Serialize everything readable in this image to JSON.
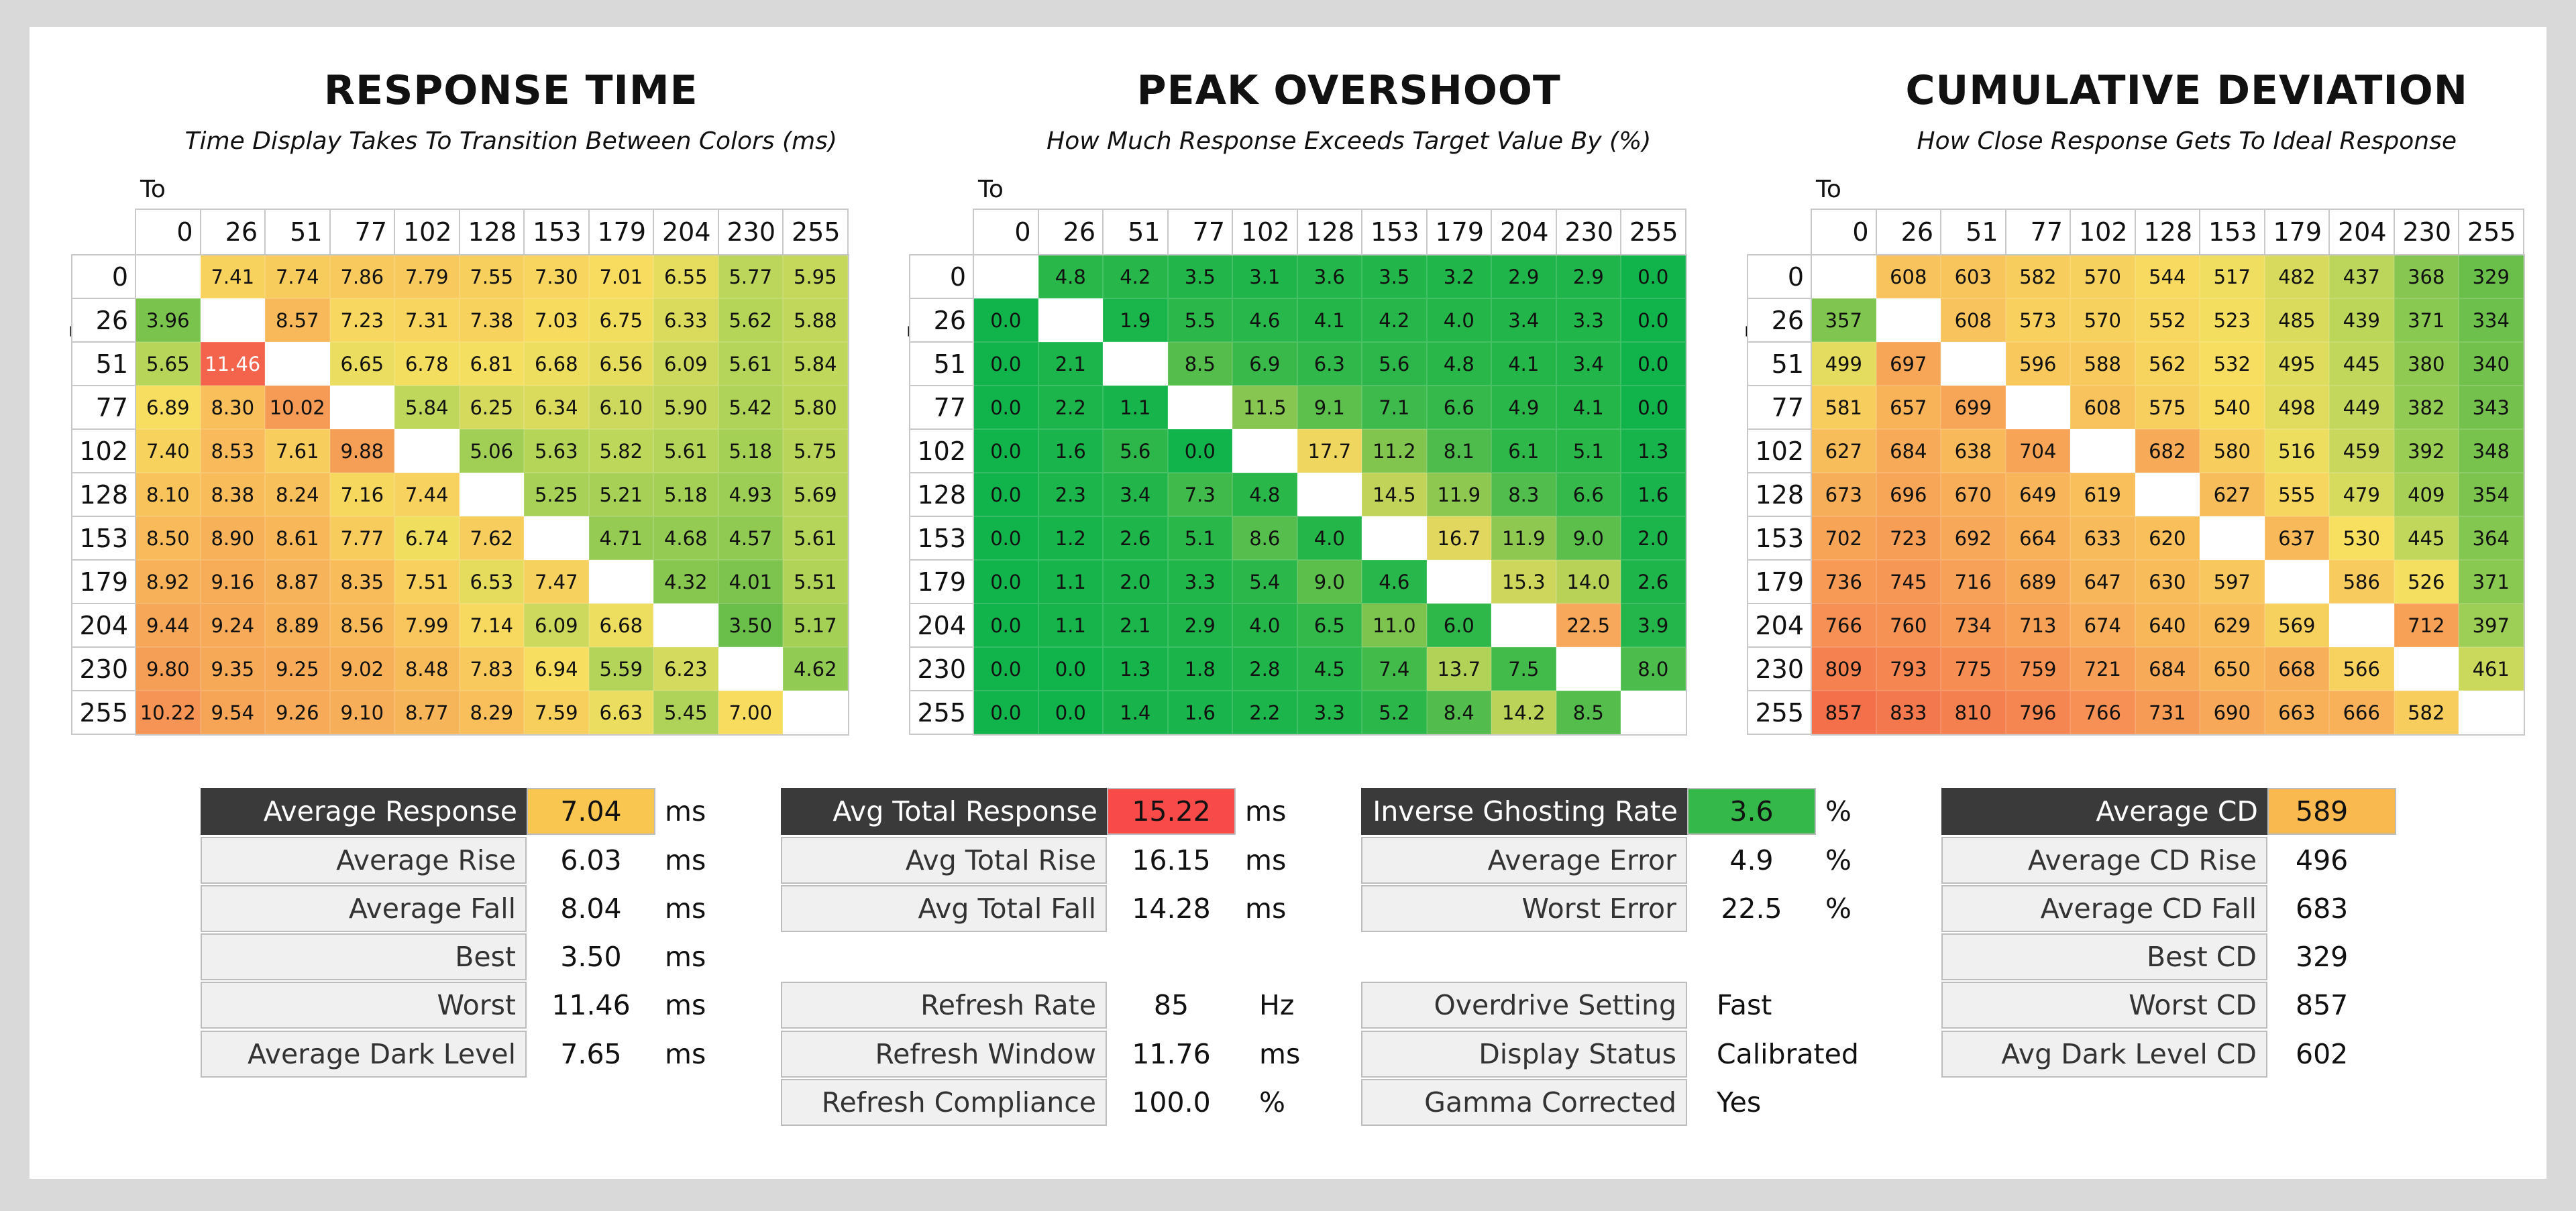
{
  "colors": {
    "background": "#d9d9d9",
    "card": "#ffffff",
    "label_dark": "#3a3a3a",
    "avg_response_box": "#f9c74f",
    "avg_total_response_box": "#f94a4a",
    "inverse_ghosting_box": "#34b84a",
    "avg_cd_box": "#f9b94f"
  },
  "axis": {
    "to": "To",
    "from": "From"
  },
  "chart_data": [
    {
      "type": "heatmap",
      "title": "RESPONSE TIME",
      "subtitle": "Time Display Takes To Transition Between Colors (ms)",
      "x_label": "To",
      "y_label": "From",
      "columns": [
        "0",
        "26",
        "51",
        "77",
        "102",
        "128",
        "153",
        "179",
        "204",
        "230",
        "255"
      ],
      "rows": [
        "0",
        "26",
        "51",
        "77",
        "102",
        "128",
        "153",
        "179",
        "204",
        "230",
        "255"
      ],
      "values": [
        [
          "",
          "7.41",
          "7.74",
          "7.86",
          "7.79",
          "7.55",
          "7.30",
          "7.01",
          "6.55",
          "5.77",
          "5.95"
        ],
        [
          "3.96",
          "",
          "8.57",
          "7.23",
          "7.31",
          "7.38",
          "7.03",
          "6.75",
          "6.33",
          "5.62",
          "5.88"
        ],
        [
          "5.65",
          "11.46",
          "",
          "6.65",
          "6.78",
          "6.81",
          "6.68",
          "6.56",
          "6.09",
          "5.61",
          "5.84"
        ],
        [
          "6.89",
          "8.30",
          "10.02",
          "",
          "5.84",
          "6.25",
          "6.34",
          "6.10",
          "5.90",
          "5.42",
          "5.80"
        ],
        [
          "7.40",
          "8.53",
          "7.61",
          "9.88",
          "",
          "5.06",
          "5.63",
          "5.82",
          "5.61",
          "5.18",
          "5.75"
        ],
        [
          "8.10",
          "8.38",
          "8.24",
          "7.16",
          "7.44",
          "",
          "5.25",
          "5.21",
          "5.18",
          "4.93",
          "5.69"
        ],
        [
          "8.50",
          "8.90",
          "8.61",
          "7.77",
          "6.74",
          "7.62",
          "",
          "4.71",
          "4.68",
          "4.57",
          "5.61"
        ],
        [
          "8.92",
          "9.16",
          "8.87",
          "8.35",
          "7.51",
          "6.53",
          "7.47",
          "",
          "4.32",
          "4.01",
          "5.51"
        ],
        [
          "9.44",
          "9.24",
          "8.89",
          "8.56",
          "7.99",
          "7.14",
          "6.09",
          "6.68",
          "",
          "3.50",
          "5.17"
        ],
        [
          "9.80",
          "9.35",
          "9.25",
          "9.02",
          "8.48",
          "7.83",
          "6.94",
          "5.59",
          "6.23",
          "",
          "4.62"
        ],
        [
          "10.22",
          "9.54",
          "9.26",
          "9.10",
          "8.77",
          "8.29",
          "7.59",
          "6.63",
          "5.45",
          "7.00",
          ""
        ]
      ]
    },
    {
      "type": "heatmap",
      "title": "PEAK OVERSHOOT",
      "subtitle": "How Much Response Exceeds Target Value By (%)",
      "x_label": "To",
      "y_label": "From",
      "columns": [
        "0",
        "26",
        "51",
        "77",
        "102",
        "128",
        "153",
        "179",
        "204",
        "230",
        "255"
      ],
      "rows": [
        "0",
        "26",
        "51",
        "77",
        "102",
        "128",
        "153",
        "179",
        "204",
        "230",
        "255"
      ],
      "values": [
        [
          "",
          "4.8",
          "4.2",
          "3.5",
          "3.1",
          "3.6",
          "3.5",
          "3.2",
          "2.9",
          "2.9",
          "0.0"
        ],
        [
          "0.0",
          "",
          "1.9",
          "5.5",
          "4.6",
          "4.1",
          "4.2",
          "4.0",
          "3.4",
          "3.3",
          "0.0"
        ],
        [
          "0.0",
          "2.1",
          "",
          "8.5",
          "6.9",
          "6.3",
          "5.6",
          "4.8",
          "4.1",
          "3.4",
          "0.0"
        ],
        [
          "0.0",
          "2.2",
          "1.1",
          "",
          "11.5",
          "9.1",
          "7.1",
          "6.6",
          "4.9",
          "4.1",
          "0.0"
        ],
        [
          "0.0",
          "1.6",
          "5.6",
          "0.0",
          "",
          "17.7",
          "11.2",
          "8.1",
          "6.1",
          "5.1",
          "1.3"
        ],
        [
          "0.0",
          "2.3",
          "3.4",
          "7.3",
          "4.8",
          "",
          "14.5",
          "11.9",
          "8.3",
          "6.6",
          "1.6"
        ],
        [
          "0.0",
          "1.2",
          "2.6",
          "5.1",
          "8.6",
          "4.0",
          "",
          "16.7",
          "11.9",
          "9.0",
          "2.0"
        ],
        [
          "0.0",
          "1.1",
          "2.0",
          "3.3",
          "5.4",
          "9.0",
          "4.6",
          "",
          "15.3",
          "14.0",
          "2.6"
        ],
        [
          "0.0",
          "1.1",
          "2.1",
          "2.9",
          "4.0",
          "6.5",
          "11.0",
          "6.0",
          "",
          "22.5",
          "3.9"
        ],
        [
          "0.0",
          "0.0",
          "1.3",
          "1.8",
          "2.8",
          "4.5",
          "7.4",
          "13.7",
          "7.5",
          "",
          "8.0"
        ],
        [
          "0.0",
          "0.0",
          "1.4",
          "1.6",
          "2.2",
          "3.3",
          "5.2",
          "8.4",
          "14.2",
          "8.5",
          ""
        ]
      ]
    },
    {
      "type": "heatmap",
      "title": "CUMULATIVE DEVIATION",
      "subtitle": "How Close Response Gets To Ideal Response",
      "x_label": "To",
      "y_label": "From",
      "columns": [
        "0",
        "26",
        "51",
        "77",
        "102",
        "128",
        "153",
        "179",
        "204",
        "230",
        "255"
      ],
      "rows": [
        "0",
        "26",
        "51",
        "77",
        "102",
        "128",
        "153",
        "179",
        "204",
        "230",
        "255"
      ],
      "values": [
        [
          "",
          "608",
          "603",
          "582",
          "570",
          "544",
          "517",
          "482",
          "437",
          "368",
          "329"
        ],
        [
          "357",
          "",
          "608",
          "573",
          "570",
          "552",
          "523",
          "485",
          "439",
          "371",
          "334"
        ],
        [
          "499",
          "697",
          "",
          "596",
          "588",
          "562",
          "532",
          "495",
          "445",
          "380",
          "340"
        ],
        [
          "581",
          "657",
          "699",
          "",
          "608",
          "575",
          "540",
          "498",
          "449",
          "382",
          "343"
        ],
        [
          "627",
          "684",
          "638",
          "704",
          "",
          "682",
          "580",
          "516",
          "459",
          "392",
          "348"
        ],
        [
          "673",
          "696",
          "670",
          "649",
          "619",
          "",
          "627",
          "555",
          "479",
          "409",
          "354"
        ],
        [
          "702",
          "723",
          "692",
          "664",
          "633",
          "620",
          "",
          "637",
          "530",
          "445",
          "364"
        ],
        [
          "736",
          "745",
          "716",
          "689",
          "647",
          "630",
          "597",
          "",
          "586",
          "526",
          "371"
        ],
        [
          "766",
          "760",
          "734",
          "713",
          "674",
          "640",
          "629",
          "569",
          "",
          "712",
          "397"
        ],
        [
          "809",
          "793",
          "775",
          "759",
          "721",
          "684",
          "650",
          "668",
          "566",
          "",
          "461"
        ],
        [
          "857",
          "833",
          "810",
          "796",
          "766",
          "731",
          "690",
          "663",
          "666",
          "582",
          ""
        ]
      ]
    }
  ],
  "stats": {
    "response": {
      "rows": [
        {
          "label": "Average Response",
          "value": "7.04",
          "unit": "ms"
        },
        {
          "label": "Average Rise",
          "value": "6.03",
          "unit": "ms"
        },
        {
          "label": "Average Fall",
          "value": "8.04",
          "unit": "ms"
        },
        {
          "label": "Best",
          "value": "3.50",
          "unit": "ms"
        },
        {
          "label": "Worst",
          "value": "11.46",
          "unit": "ms"
        },
        {
          "label": "Average Dark Level",
          "value": "7.65",
          "unit": "ms"
        }
      ]
    },
    "total": {
      "rows": [
        {
          "label": "Avg Total Response",
          "value": "15.22",
          "unit": "ms"
        },
        {
          "label": "Avg Total Rise",
          "value": "16.15",
          "unit": "ms"
        },
        {
          "label": "Avg Total Fall",
          "value": "14.28",
          "unit": "ms"
        }
      ],
      "refresh": [
        {
          "label": "Refresh Rate",
          "value": "85",
          "unit": "Hz"
        },
        {
          "label": "Refresh Window",
          "value": "11.76",
          "unit": "ms"
        },
        {
          "label": "Refresh Compliance",
          "value": "100.0",
          "unit": "%"
        }
      ]
    },
    "overshoot": {
      "rows": [
        {
          "label": "Inverse Ghosting Rate",
          "value": "3.6",
          "unit": "%"
        },
        {
          "label": "Average Error",
          "value": "4.9",
          "unit": "%"
        },
        {
          "label": "Worst Error",
          "value": "22.5",
          "unit": "%"
        }
      ],
      "settings": [
        {
          "label": "Overdrive Setting",
          "value": "Fast"
        },
        {
          "label": "Display Status",
          "value": "Calibrated"
        },
        {
          "label": "Gamma Corrected",
          "value": "Yes"
        }
      ]
    },
    "cd": {
      "rows": [
        {
          "label": "Average CD",
          "value": "589"
        },
        {
          "label": "Average CD Rise",
          "value": "496"
        },
        {
          "label": "Average CD Fall",
          "value": "683"
        },
        {
          "label": "Best CD",
          "value": "329"
        },
        {
          "label": "Worst CD",
          "value": "857"
        },
        {
          "label": "Avg Dark Level CD",
          "value": "602"
        }
      ]
    }
  }
}
